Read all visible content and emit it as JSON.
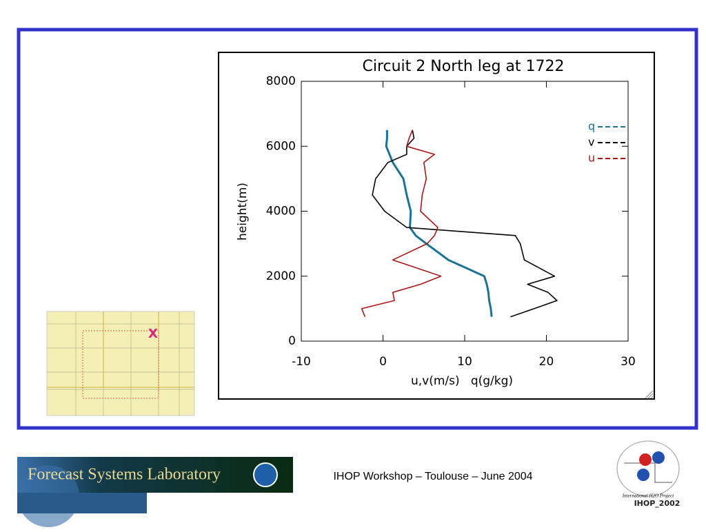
{
  "chart_data": {
    "type": "line",
    "title": "Circuit 2 North leg at 1722",
    "xlabel": "u,v(m/s)   q(g/kg)",
    "ylabel": "height(m)",
    "y": [
      750,
      1000,
      1250,
      1500,
      1750,
      2000,
      2500,
      3000,
      3250,
      3500,
      4000,
      4500,
      5000,
      5500,
      5750,
      6000,
      6250,
      6500
    ],
    "series": [
      {
        "name": "q",
        "color": "#1a7396",
        "values": [
          13.3,
          13.2,
          13.0,
          12.9,
          12.7,
          12.4,
          8.0,
          5.3,
          4.0,
          3.3,
          3.4,
          2.9,
          2.5,
          1.2,
          0.8,
          0.4,
          0.5,
          0.5
        ]
      },
      {
        "name": "v",
        "color": "#000000",
        "values": [
          15.6,
          18.5,
          21.3,
          20.2,
          17.7,
          21.0,
          17.3,
          16.8,
          16.2,
          2.9,
          0.2,
          -1.3,
          -0.9,
          0.6,
          2.9,
          2.9,
          3.8,
          3.6
        ]
      },
      {
        "name": "u",
        "color": "#aa1515",
        "values": [
          -2.2,
          -2.6,
          1.4,
          1.2,
          4.6,
          7.1,
          1.2,
          5.4,
          6.3,
          6.7,
          4.6,
          4.8,
          5.3,
          5.0,
          6.3,
          2.9,
          3.2,
          3.6
        ]
      }
    ],
    "xlim": [
      -10,
      30
    ],
    "xticks": [
      -10,
      0,
      10,
      20,
      30
    ],
    "ylim": [
      0,
      8000
    ],
    "yticks": [
      0,
      2000,
      4000,
      6000,
      8000
    ],
    "legend": "upper right"
  },
  "map": {
    "marker": "X"
  },
  "footer": {
    "text": "IHOP Workshop – Toulouse – June 2004",
    "lab_logo": "Forecast Systems Laboratory",
    "ihop_logo": {
      "subtitle": "International H2O Project",
      "name": "IHOP_2002"
    }
  }
}
